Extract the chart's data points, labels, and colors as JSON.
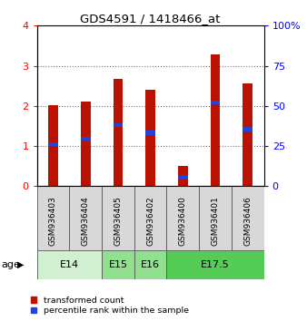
{
  "title": "GDS4591 / 1418466_at",
  "samples": [
    "GSM936403",
    "GSM936404",
    "GSM936405",
    "GSM936402",
    "GSM936400",
    "GSM936401",
    "GSM936406"
  ],
  "red_values": [
    2.02,
    2.12,
    2.68,
    2.4,
    0.5,
    3.28,
    2.57
  ],
  "blue_values": [
    1.05,
    1.18,
    1.52,
    1.33,
    0.22,
    2.08,
    1.42
  ],
  "age_groups": [
    {
      "label": "E14",
      "start": 0,
      "end": 2,
      "color": "#d0f0d0"
    },
    {
      "label": "E15",
      "start": 2,
      "end": 3,
      "color": "#90e090"
    },
    {
      "label": "E16",
      "start": 3,
      "end": 4,
      "color": "#90e090"
    },
    {
      "label": "E17.5",
      "start": 4,
      "end": 7,
      "color": "#55cc55"
    }
  ],
  "ylim_left": [
    0,
    4
  ],
  "ylim_right": [
    0,
    100
  ],
  "yticks_left": [
    0,
    1,
    2,
    3,
    4
  ],
  "yticks_right": [
    0,
    25,
    50,
    75,
    100
  ],
  "bar_color_red": "#bb1100",
  "bar_color_blue": "#2244dd",
  "bar_width": 0.3,
  "legend_red": "transformed count",
  "legend_blue": "percentile rank within the sample"
}
